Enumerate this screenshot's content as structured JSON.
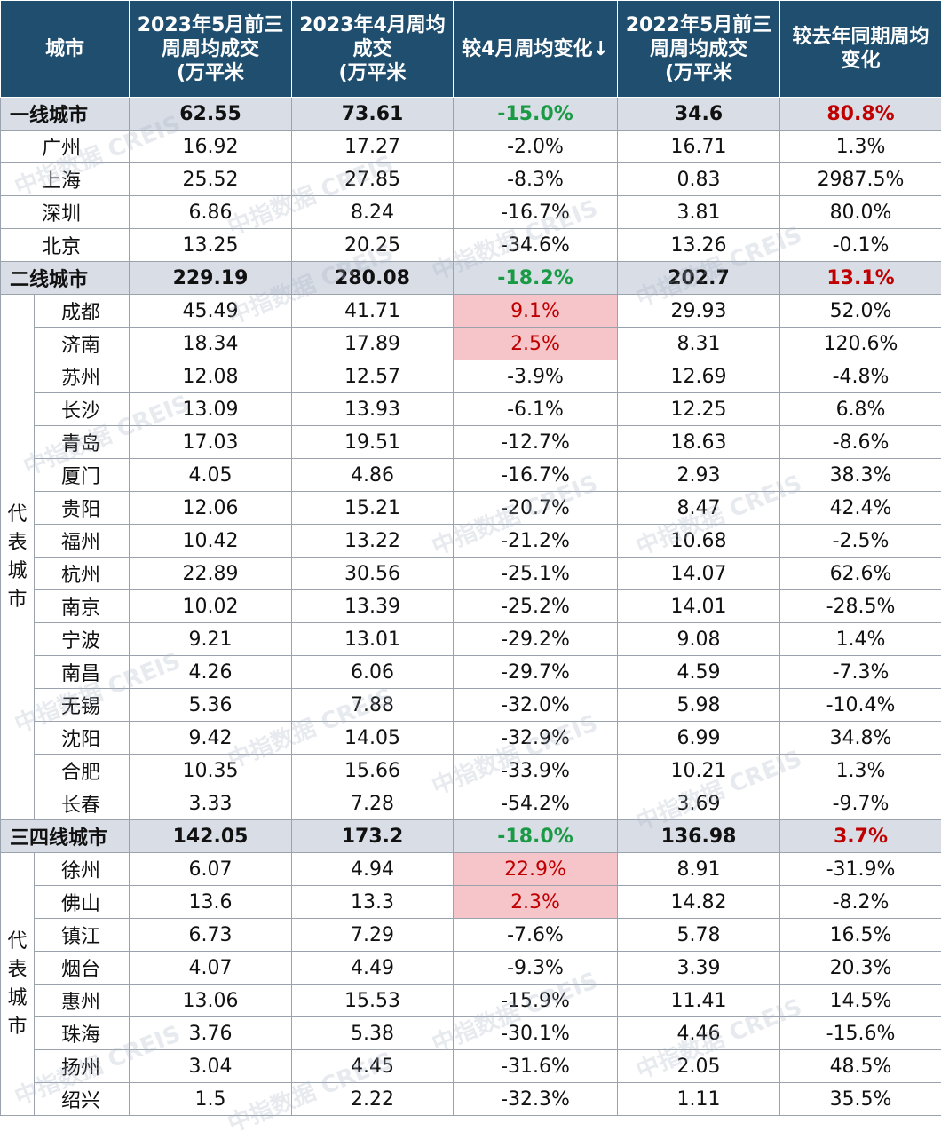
{
  "chart_data": {
    "type": "table",
    "columns": [
      "城市",
      "2023年5月前三周周均成交（万平米",
      "2023年4月周均成交（万平米",
      "较4月周均变化↓",
      "2022年5月前三周周均成交（万平米",
      "较去年同期周均变化"
    ],
    "header": {
      "c0": [
        "城市"
      ],
      "c1": [
        "2023年5月前三",
        "周周均成交",
        "(万平米"
      ],
      "c2": [
        "2023年4月周均",
        "成交",
        "(万平米"
      ],
      "c3": [
        "较4月周均变化↓"
      ],
      "c4": [
        "2022年5月前三",
        "周周均成交",
        "(万平米"
      ],
      "c5": [
        "较去年同期周均",
        "变化"
      ]
    },
    "rep_label": "代表城市",
    "tier1": {
      "total": [
        "一线城市",
        "62.55",
        "73.61",
        "-15.0%",
        "34.6",
        "80.8%"
      ],
      "rows": [
        [
          "广州",
          "16.92",
          "17.27",
          "-2.0%",
          "16.71",
          "1.3%"
        ],
        [
          "上海",
          "25.52",
          "27.85",
          "-8.3%",
          "0.83",
          "2987.5%"
        ],
        [
          "深圳",
          "6.86",
          "8.24",
          "-16.7%",
          "3.81",
          "80.0%"
        ],
        [
          "北京",
          "13.25",
          "20.25",
          "-34.6%",
          "13.26",
          "-0.1%"
        ]
      ]
    },
    "tier2": {
      "total": [
        "二线城市",
        "229.19",
        "280.08",
        "-18.2%",
        "202.7",
        "13.1%"
      ],
      "rows": [
        [
          "成都",
          "45.49",
          "41.71",
          "9.1%",
          "29.93",
          "52.0%"
        ],
        [
          "济南",
          "18.34",
          "17.89",
          "2.5%",
          "8.31",
          "120.6%"
        ],
        [
          "苏州",
          "12.08",
          "12.57",
          "-3.9%",
          "12.69",
          "-4.8%"
        ],
        [
          "长沙",
          "13.09",
          "13.93",
          "-6.1%",
          "12.25",
          "6.8%"
        ],
        [
          "青岛",
          "17.03",
          "19.51",
          "-12.7%",
          "18.63",
          "-8.6%"
        ],
        [
          "厦门",
          "4.05",
          "4.86",
          "-16.7%",
          "2.93",
          "38.3%"
        ],
        [
          "贵阳",
          "12.06",
          "15.21",
          "-20.7%",
          "8.47",
          "42.4%"
        ],
        [
          "福州",
          "10.42",
          "13.22",
          "-21.2%",
          "10.68",
          "-2.5%"
        ],
        [
          "杭州",
          "22.89",
          "30.56",
          "-25.1%",
          "14.07",
          "62.6%"
        ],
        [
          "南京",
          "10.02",
          "13.39",
          "-25.2%",
          "14.01",
          "-28.5%"
        ],
        [
          "宁波",
          "9.21",
          "13.01",
          "-29.2%",
          "9.08",
          "1.4%"
        ],
        [
          "南昌",
          "4.26",
          "6.06",
          "-29.7%",
          "4.59",
          "-7.3%"
        ],
        [
          "无锡",
          "5.36",
          "7.88",
          "-32.0%",
          "5.98",
          "-10.4%"
        ],
        [
          "沈阳",
          "9.42",
          "14.05",
          "-32.9%",
          "6.99",
          "34.8%"
        ],
        [
          "合肥",
          "10.35",
          "15.66",
          "-33.9%",
          "10.21",
          "1.3%"
        ],
        [
          "长春",
          "3.33",
          "7.28",
          "-54.2%",
          "3.69",
          "-9.7%"
        ]
      ]
    },
    "tier3": {
      "total": [
        "三四线城市",
        "142.05",
        "173.2",
        "-18.0%",
        "136.98",
        "3.7%"
      ],
      "rows": [
        [
          "徐州",
          "6.07",
          "4.94",
          "22.9%",
          "8.91",
          "-31.9%"
        ],
        [
          "佛山",
          "13.6",
          "13.3",
          "2.3%",
          "14.82",
          "-8.2%"
        ],
        [
          "镇江",
          "6.73",
          "7.29",
          "-7.6%",
          "5.78",
          "16.5%"
        ],
        [
          "烟台",
          "4.07",
          "4.49",
          "-9.3%",
          "3.39",
          "20.3%"
        ],
        [
          "惠州",
          "13.06",
          "15.53",
          "-15.9%",
          "11.41",
          "14.5%"
        ],
        [
          "珠海",
          "3.76",
          "5.38",
          "-30.1%",
          "4.46",
          "-15.6%"
        ],
        [
          "扬州",
          "3.04",
          "4.45",
          "-31.6%",
          "2.05",
          "48.5%"
        ],
        [
          "绍兴",
          "1.5",
          "2.22",
          "-32.3%",
          "1.11",
          "35.5%"
        ]
      ]
    },
    "colors": {
      "header_bg": "#1f4e6e",
      "tier_bg": "#d8dde6",
      "negative_change": "#1a9a45",
      "positive_change": "#c00000",
      "positive_highlight_bg": "#f6c5c9"
    },
    "watermark": "中指数据 CREIS"
  }
}
